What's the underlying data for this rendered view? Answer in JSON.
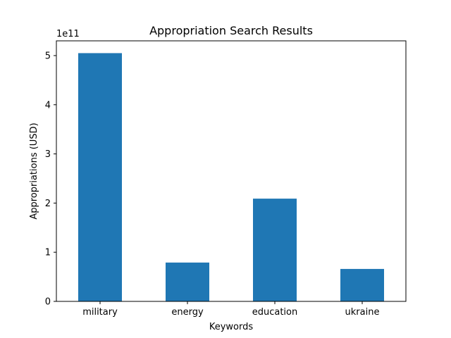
{
  "chart_data": {
    "type": "bar",
    "title": "Appropriation Search Results",
    "xlabel": "Keywords",
    "ylabel": "Appropriations (USD)",
    "y_scale_label": "1e11",
    "categories": [
      "military",
      "energy",
      "education",
      "ukraine"
    ],
    "values": [
      505000000000,
      79000000000,
      209000000000,
      66000000000
    ],
    "ylim": [
      0,
      530000000000
    ],
    "y_ticks": [
      0,
      100000000000,
      200000000000,
      300000000000,
      400000000000,
      500000000000
    ],
    "y_tick_labels": [
      "0",
      "1",
      "2",
      "3",
      "4",
      "5"
    ],
    "bar_color": "#1f77b4",
    "grid": false,
    "legend": "none"
  }
}
